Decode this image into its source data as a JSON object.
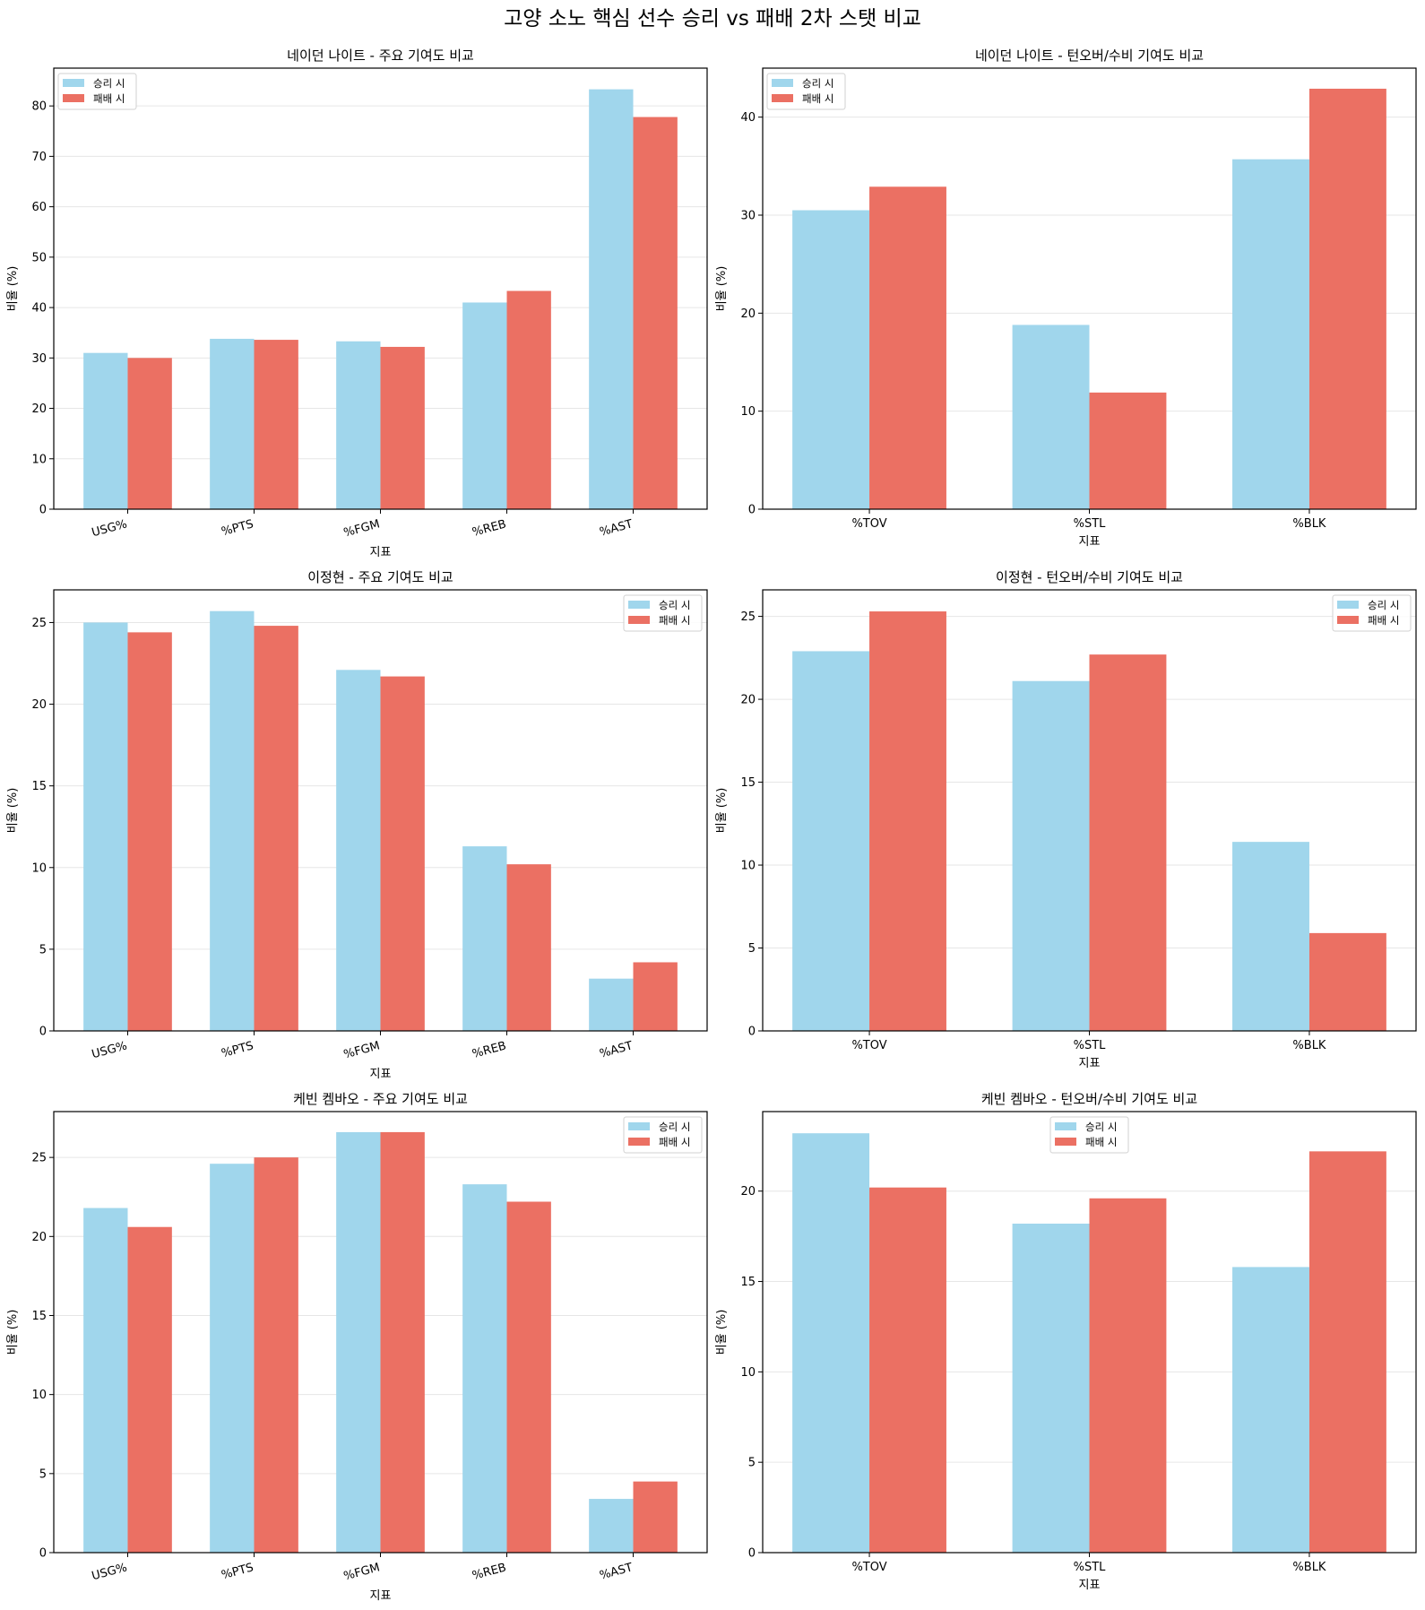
{
  "figure": {
    "suptitle": "고양 소노 핵심 선수 승리 vs 패배 2차 스탯 비교"
  },
  "colors": {
    "win": "#A0D6EC",
    "loss": "#EB7063"
  },
  "chart_data": [
    {
      "type": "bar",
      "title": "네이던 나이트 - 주요 기여도 비교",
      "xlabel": "지표",
      "ylabel": "비율 (%)",
      "categories": [
        "USG%",
        "%PTS",
        "%FGM",
        "%REB",
        "%AST"
      ],
      "series": [
        {
          "name": "승리 시",
          "values": [
            31.0,
            33.8,
            33.3,
            41.0,
            83.3
          ]
        },
        {
          "name": "패배 시",
          "values": [
            30.0,
            33.6,
            32.2,
            43.3,
            77.8
          ]
        }
      ],
      "ylim": [
        0,
        87.5
      ],
      "yticks": [
        0,
        10,
        20,
        30,
        40,
        50,
        60,
        70,
        80
      ],
      "xtick_rotation": 15,
      "grid": "y",
      "legend": "upper-left"
    },
    {
      "type": "bar",
      "title": "네이던 나이트 - 턴오버/수비 기여도 비교",
      "xlabel": "지표",
      "ylabel": "비율 (%)",
      "categories": [
        "%TOV",
        "%STL",
        "%BLK"
      ],
      "series": [
        {
          "name": "승리 시",
          "values": [
            30.5,
            18.8,
            35.7
          ]
        },
        {
          "name": "패배 시",
          "values": [
            32.9,
            11.9,
            42.9
          ]
        }
      ],
      "ylim": [
        0,
        45.0
      ],
      "yticks": [
        0,
        10,
        20,
        30,
        40
      ],
      "xtick_rotation": 0,
      "grid": "y",
      "legend": "upper-left"
    },
    {
      "type": "bar",
      "title": "이정현 - 주요 기여도 비교",
      "xlabel": "지표",
      "ylabel": "비율 (%)",
      "categories": [
        "USG%",
        "%PTS",
        "%FGM",
        "%REB",
        "%AST"
      ],
      "series": [
        {
          "name": "승리 시",
          "values": [
            25.0,
            25.7,
            22.1,
            11.3,
            3.2
          ]
        },
        {
          "name": "패배 시",
          "values": [
            24.4,
            24.8,
            21.7,
            10.2,
            4.2
          ]
        }
      ],
      "ylim": [
        0,
        27.0
      ],
      "yticks": [
        0,
        5,
        10,
        15,
        20,
        25
      ],
      "xtick_rotation": 15,
      "grid": "y",
      "legend": "upper-right"
    },
    {
      "type": "bar",
      "title": "이정현 - 턴오버/수비 기여도 비교",
      "xlabel": "지표",
      "ylabel": "비율 (%)",
      "categories": [
        "%TOV",
        "%STL",
        "%BLK"
      ],
      "series": [
        {
          "name": "승리 시",
          "values": [
            22.9,
            21.1,
            11.4
          ]
        },
        {
          "name": "패배 시",
          "values": [
            25.3,
            22.7,
            5.9
          ]
        }
      ],
      "ylim": [
        0,
        26.6
      ],
      "yticks": [
        0,
        5,
        10,
        15,
        20,
        25
      ],
      "xtick_rotation": 0,
      "grid": "y",
      "legend": "upper-right"
    },
    {
      "type": "bar",
      "title": "케빈 켐바오 - 주요 기여도 비교",
      "xlabel": "지표",
      "ylabel": "비율 (%)",
      "categories": [
        "USG%",
        "%PTS",
        "%FGM",
        "%REB",
        "%AST"
      ],
      "series": [
        {
          "name": "승리 시",
          "values": [
            21.8,
            24.6,
            26.6,
            23.3,
            3.4
          ]
        },
        {
          "name": "패배 시",
          "values": [
            20.6,
            25.0,
            26.6,
            22.2,
            4.5
          ]
        }
      ],
      "ylim": [
        0,
        27.9
      ],
      "yticks": [
        0,
        5,
        10,
        15,
        20,
        25
      ],
      "xtick_rotation": 15,
      "grid": "y",
      "legend": "upper-right"
    },
    {
      "type": "bar",
      "title": "케빈 켐바오 - 턴오버/수비 기여도 비교",
      "xlabel": "지표",
      "ylabel": "비율 (%)",
      "categories": [
        "%TOV",
        "%STL",
        "%BLK"
      ],
      "series": [
        {
          "name": "승리 시",
          "values": [
            23.2,
            18.2,
            15.8
          ]
        },
        {
          "name": "패배 시",
          "values": [
            20.2,
            19.6,
            22.2
          ]
        }
      ],
      "ylim": [
        0,
        24.4
      ],
      "yticks": [
        0,
        5,
        10,
        15,
        20
      ],
      "xtick_rotation": 0,
      "grid": "y",
      "legend": "upper-center"
    }
  ]
}
